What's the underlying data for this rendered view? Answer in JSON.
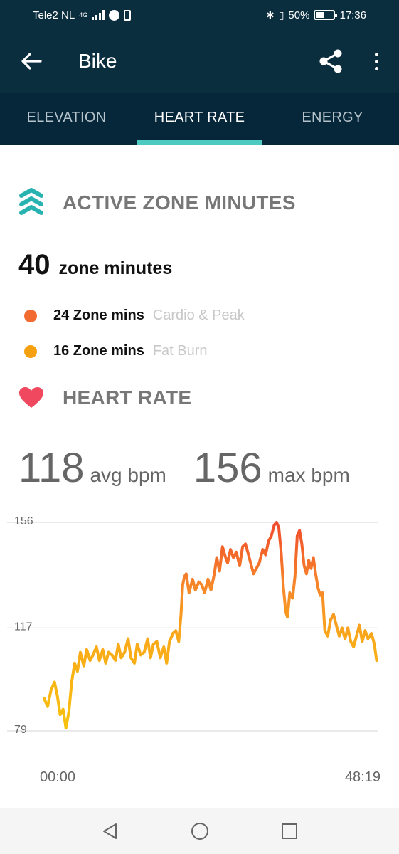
{
  "status_bar": {
    "carrier": "Tele2 NL",
    "network": "4G",
    "battery_percent": "50%",
    "battery_level": 0.5,
    "time": "17:36"
  },
  "app_bar": {
    "title": "Bike"
  },
  "tabs": [
    {
      "label": "ELEVATION",
      "active": false
    },
    {
      "label": "HEART RATE",
      "active": true
    },
    {
      "label": "ENERGY",
      "active": false
    }
  ],
  "active_zone": {
    "heading": "ACTIVE ZONE MINUTES",
    "total_value": "40",
    "total_label": "zone minutes",
    "zones": [
      {
        "value": "24 Zone mins",
        "category": "Cardio & Peak",
        "color": "#f26b30"
      },
      {
        "value": "16 Zone mins",
        "category": "Fat Burn",
        "color": "#f5a10f"
      }
    ]
  },
  "heart_rate": {
    "heading": "HEART RATE",
    "avg_value": "118",
    "avg_unit": "avg bpm",
    "max_value": "156",
    "max_unit": "max bpm"
  },
  "chart_data": {
    "type": "line",
    "y_ticks": [
      "156",
      "117",
      "79"
    ],
    "ylim": [
      79,
      156
    ],
    "x_start_label": "00:00",
    "x_end_label": "48:19",
    "x_duration_seconds": 2899,
    "grid": true,
    "series": [
      {
        "points": [
          [
            0,
            91
          ],
          [
            30,
            88
          ],
          [
            60,
            94
          ],
          [
            90,
            97
          ],
          [
            115,
            92
          ],
          [
            140,
            85
          ],
          [
            165,
            87
          ],
          [
            190,
            80
          ],
          [
            215,
            86
          ],
          [
            240,
            97
          ],
          [
            265,
            104
          ],
          [
            290,
            101
          ],
          [
            315,
            108
          ],
          [
            345,
            103
          ],
          [
            370,
            109
          ],
          [
            400,
            105
          ],
          [
            425,
            107
          ],
          [
            455,
            110
          ],
          [
            480,
            105
          ],
          [
            510,
            109
          ],
          [
            535,
            104
          ],
          [
            560,
            108
          ],
          [
            590,
            107
          ],
          [
            620,
            105
          ],
          [
            645,
            111
          ],
          [
            670,
            106
          ],
          [
            700,
            108
          ],
          [
            730,
            113
          ],
          [
            755,
            106
          ],
          [
            785,
            104
          ],
          [
            810,
            111
          ],
          [
            840,
            107
          ],
          [
            870,
            108
          ],
          [
            900,
            113
          ],
          [
            925,
            106
          ],
          [
            950,
            111
          ],
          [
            980,
            112
          ],
          [
            1010,
            106
          ],
          [
            1040,
            110
          ],
          [
            1065,
            104
          ],
          [
            1090,
            112
          ],
          [
            1120,
            115
          ],
          [
            1145,
            116
          ],
          [
            1170,
            112
          ],
          [
            1190,
            122
          ],
          [
            1205,
            133
          ],
          [
            1220,
            136
          ],
          [
            1235,
            137
          ],
          [
            1260,
            130
          ],
          [
            1290,
            135
          ],
          [
            1315,
            131
          ],
          [
            1345,
            134
          ],
          [
            1370,
            133
          ],
          [
            1395,
            130
          ],
          [
            1425,
            135
          ],
          [
            1450,
            131
          ],
          [
            1480,
            137
          ],
          [
            1500,
            143
          ],
          [
            1525,
            138
          ],
          [
            1550,
            147
          ],
          [
            1570,
            144
          ],
          [
            1595,
            141
          ],
          [
            1620,
            146
          ],
          [
            1645,
            143
          ],
          [
            1670,
            145
          ],
          [
            1700,
            140
          ],
          [
            1725,
            147
          ],
          [
            1750,
            148
          ],
          [
            1770,
            145
          ],
          [
            1795,
            141
          ],
          [
            1820,
            137
          ],
          [
            1845,
            139
          ],
          [
            1870,
            141
          ],
          [
            1900,
            146
          ],
          [
            1925,
            144
          ],
          [
            1950,
            149
          ],
          [
            1975,
            151
          ],
          [
            2000,
            155
          ],
          [
            2020,
            156
          ],
          [
            2040,
            154
          ],
          [
            2060,
            145
          ],
          [
            2080,
            132
          ],
          [
            2100,
            123
          ],
          [
            2115,
            121
          ],
          [
            2135,
            130
          ],
          [
            2160,
            128
          ],
          [
            2180,
            136
          ],
          [
            2200,
            151
          ],
          [
            2220,
            153
          ],
          [
            2240,
            148
          ],
          [
            2260,
            140
          ],
          [
            2280,
            137
          ],
          [
            2300,
            142
          ],
          [
            2320,
            139
          ],
          [
            2340,
            143
          ],
          [
            2360,
            137
          ],
          [
            2380,
            132
          ],
          [
            2400,
            129
          ],
          [
            2420,
            130
          ],
          [
            2440,
            116
          ],
          [
            2465,
            114
          ],
          [
            2490,
            120
          ],
          [
            2515,
            122
          ],
          [
            2540,
            118
          ],
          [
            2565,
            114
          ],
          [
            2590,
            117
          ],
          [
            2615,
            113
          ],
          [
            2640,
            117
          ],
          [
            2665,
            112
          ],
          [
            2690,
            110
          ],
          [
            2715,
            114
          ],
          [
            2740,
            118
          ],
          [
            2765,
            112
          ],
          [
            2790,
            116
          ],
          [
            2815,
            113
          ],
          [
            2845,
            115
          ],
          [
            2870,
            111
          ],
          [
            2890,
            105
          ]
        ]
      }
    ]
  }
}
